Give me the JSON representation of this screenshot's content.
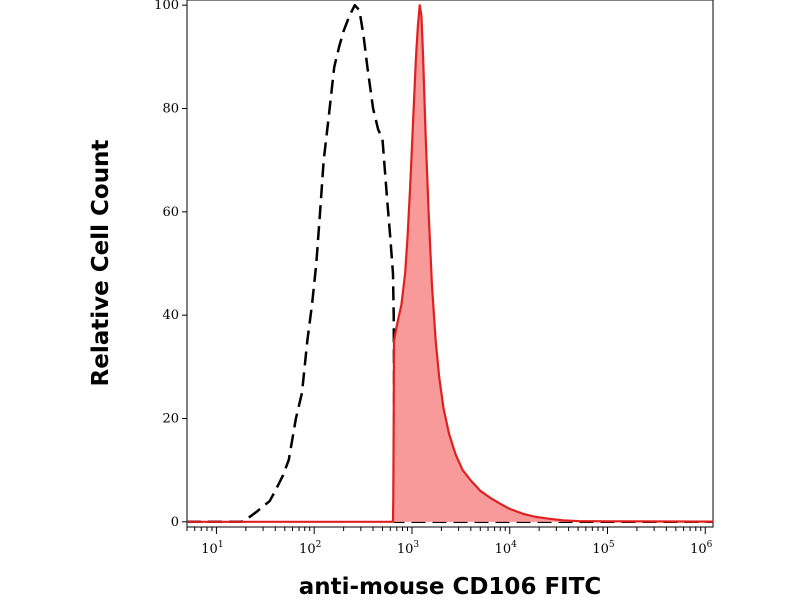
{
  "chart_data": {
    "type": "area",
    "title": "",
    "xlabel": "anti-mouse CD106 FITC",
    "ylabel": "Relative Cell Count",
    "xscale": "log",
    "xlim": [
      5,
      1200000
    ],
    "ylim": [
      -1,
      101
    ],
    "grid": false,
    "legend": "none",
    "x_tick_labels": [
      {
        "base": "10",
        "exp": "1",
        "value": 10
      },
      {
        "base": "10",
        "exp": "2",
        "value": 100
      },
      {
        "base": "10",
        "exp": "3",
        "value": 1000
      },
      {
        "base": "10",
        "exp": "4",
        "value": 10000
      },
      {
        "base": "10",
        "exp": "5",
        "value": 100000
      },
      {
        "base": "10",
        "exp": "6",
        "value": 1000000
      }
    ],
    "y_ticks": [
      0,
      20,
      40,
      60,
      80,
      100
    ],
    "series": [
      {
        "style": "dashed",
        "color": "#000000",
        "fill": "none",
        "points": [
          [
            5,
            0
          ],
          [
            18,
            0
          ],
          [
            22,
            1
          ],
          [
            26,
            2
          ],
          [
            30,
            3
          ],
          [
            35,
            4
          ],
          [
            40,
            6
          ],
          [
            48,
            9
          ],
          [
            55,
            12
          ],
          [
            65,
            20
          ],
          [
            75,
            25
          ],
          [
            85,
            35
          ],
          [
            95,
            42
          ],
          [
            105,
            50
          ],
          [
            115,
            60
          ],
          [
            125,
            70
          ],
          [
            140,
            78
          ],
          [
            160,
            88
          ],
          [
            180,
            92
          ],
          [
            200,
            95
          ],
          [
            230,
            98
          ],
          [
            260,
            100
          ],
          [
            290,
            99
          ],
          [
            320,
            94
          ],
          [
            350,
            88
          ],
          [
            400,
            80
          ],
          [
            450,
            76
          ],
          [
            500,
            74
          ],
          [
            560,
            62
          ],
          [
            600,
            55
          ],
          [
            640,
            48
          ],
          [
            650,
            40
          ],
          [
            655,
            30
          ],
          [
            660,
            15
          ],
          [
            665,
            5
          ],
          [
            670,
            0
          ],
          [
            1200000,
            0
          ]
        ]
      },
      {
        "style": "solid",
        "color": "#e02020",
        "fill": "#f89a9a",
        "points": [
          [
            5,
            0
          ],
          [
            640,
            0
          ],
          [
            645,
            5
          ],
          [
            650,
            20
          ],
          [
            655,
            35
          ],
          [
            700,
            38
          ],
          [
            780,
            42
          ],
          [
            850,
            48
          ],
          [
            900,
            55
          ],
          [
            960,
            65
          ],
          [
            1030,
            78
          ],
          [
            1100,
            90
          ],
          [
            1150,
            96
          ],
          [
            1200,
            100
          ],
          [
            1250,
            98
          ],
          [
            1300,
            90
          ],
          [
            1380,
            75
          ],
          [
            1480,
            60
          ],
          [
            1600,
            46
          ],
          [
            1750,
            35
          ],
          [
            1900,
            28
          ],
          [
            2100,
            22
          ],
          [
            2400,
            17
          ],
          [
            2800,
            13
          ],
          [
            3300,
            10
          ],
          [
            4000,
            8
          ],
          [
            5000,
            6
          ],
          [
            6500,
            4.5
          ],
          [
            8000,
            3.5
          ],
          [
            10000,
            2.5
          ],
          [
            14000,
            1.5
          ],
          [
            18000,
            1
          ],
          [
            25000,
            0.6
          ],
          [
            35000,
            0.3
          ],
          [
            50000,
            0.15
          ],
          [
            100000,
            0.1
          ],
          [
            1200000,
            0.05
          ]
        ]
      }
    ]
  }
}
